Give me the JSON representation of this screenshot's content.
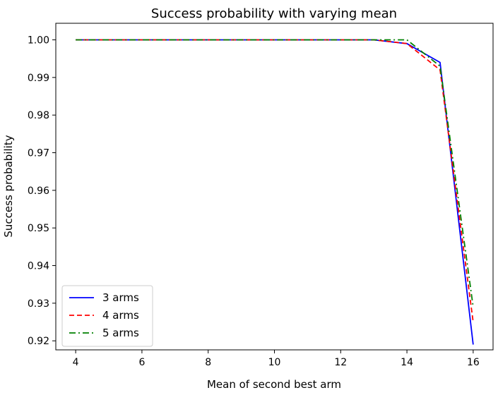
{
  "chart_data": {
    "type": "line",
    "title": "Success probability with varying mean",
    "xlabel": "Mean of second best arm",
    "ylabel": "Success probability",
    "xlim": [
      3.4,
      16.6
    ],
    "ylim": [
      0.9176,
      1.0044
    ],
    "xticks": [
      "4",
      "6",
      "8",
      "10",
      "12",
      "14",
      "16"
    ],
    "yticks": [
      "0.92",
      "0.93",
      "0.94",
      "0.95",
      "0.96",
      "0.97",
      "0.98",
      "0.99",
      "1.00"
    ],
    "grid": false,
    "legend_position": "lower-left",
    "x": [
      4,
      5,
      6,
      7,
      8,
      9,
      10,
      11,
      12,
      13,
      14,
      15,
      16
    ],
    "series": [
      {
        "name": "3 arms",
        "color": "#0000ff",
        "linestyle": "solid",
        "values": [
          1.0,
          1.0,
          1.0,
          1.0,
          1.0,
          1.0,
          1.0,
          1.0,
          1.0,
          1.0,
          0.999,
          0.994,
          0.919
        ]
      },
      {
        "name": "4 arms",
        "color": "#ff0000",
        "linestyle": "dashed",
        "values": [
          1.0,
          1.0,
          1.0,
          1.0,
          1.0,
          1.0,
          1.0,
          1.0,
          1.0,
          1.0,
          0.999,
          0.992,
          0.925
        ]
      },
      {
        "name": "5 arms",
        "color": "#008000",
        "linestyle": "dashdot",
        "values": [
          1.0,
          1.0,
          1.0,
          1.0,
          1.0,
          1.0,
          1.0,
          1.0,
          1.0,
          1.0,
          1.0,
          0.993,
          0.929
        ]
      }
    ]
  }
}
